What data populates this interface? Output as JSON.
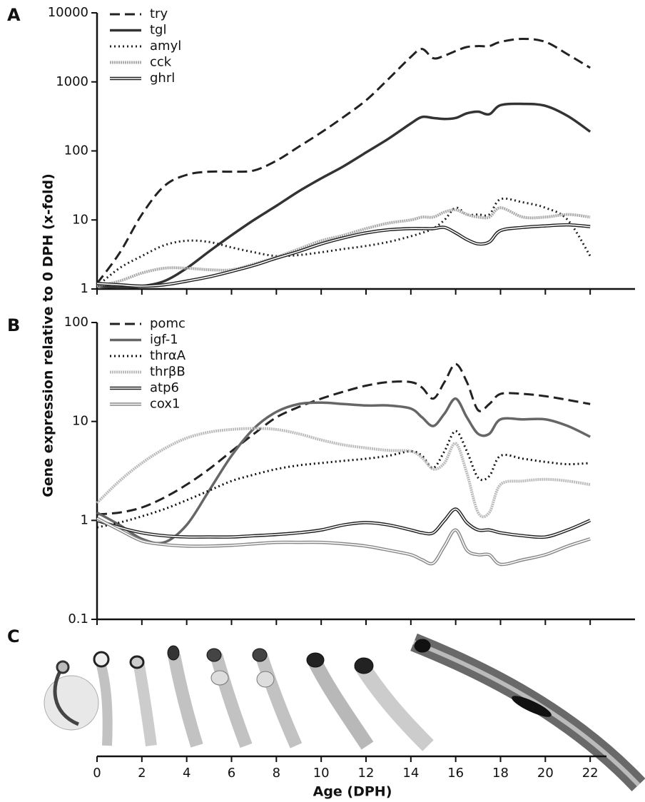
{
  "panel_labels": [
    "A",
    "B",
    "C"
  ],
  "y_axis_label": "Gene expression relative to 0 DPH (x-fold)",
  "age_axis": {
    "label": "Age (DPH)",
    "xticks": [
      0,
      2,
      4,
      6,
      8,
      10,
      12,
      14,
      16,
      18,
      20,
      22
    ]
  },
  "chart_data": [
    {
      "type": "line",
      "log_y": true,
      "legend": "top-left",
      "xlim": [
        0,
        24
      ],
      "ylim": [
        1,
        10000
      ],
      "yticks": [
        1,
        10,
        100,
        1000,
        10000
      ],
      "x": [
        0,
        1,
        2,
        3,
        4,
        5,
        6,
        7,
        8,
        9,
        10,
        11,
        12,
        13,
        14,
        14.5,
        15,
        15.5,
        16,
        16.5,
        17,
        17.5,
        18,
        19,
        20,
        21,
        22
      ],
      "series": [
        {
          "name": "try",
          "color": "#222222",
          "style": "dashed",
          "values": [
            1.2,
            3.3,
            12,
            31,
            45,
            50,
            50,
            52,
            72,
            115,
            185,
            310,
            540,
            1100,
            2300,
            3000,
            2200,
            2400,
            2800,
            3200,
            3300,
            3300,
            3800,
            4200,
            3800,
            2500,
            1600
          ]
        },
        {
          "name": "tgl",
          "color": "#333333",
          "style": "solid",
          "values": [
            1.1,
            1.05,
            1.1,
            1.3,
            2,
            3.5,
            6,
            10,
            16,
            26,
            40,
            60,
            95,
            150,
            250,
            310,
            300,
            290,
            300,
            350,
            370,
            340,
            460,
            480,
            450,
            320,
            190
          ]
        },
        {
          "name": "amyl",
          "color": "#222222",
          "style": "dotted",
          "values": [
            1.1,
            2,
            3,
            4.3,
            5,
            4.8,
            4,
            3.4,
            3,
            3.1,
            3.4,
            3.8,
            4.2,
            4.8,
            5.8,
            6.5,
            7.5,
            10,
            15,
            12,
            12,
            12,
            20,
            18,
            15,
            10,
            3
          ]
        },
        {
          "name": "cck",
          "color": "#aaaaaa",
          "style": "hatched",
          "values": [
            1.1,
            1.3,
            1.7,
            2,
            2,
            1.9,
            1.9,
            2.3,
            2.9,
            3.8,
            5,
            6,
            7.5,
            9,
            10,
            11,
            11,
            13,
            14,
            12,
            11,
            11,
            15,
            11,
            11,
            12,
            11
          ]
        },
        {
          "name": "ghrl",
          "color": "#222222",
          "style": "double",
          "values": [
            1.2,
            1.15,
            1.1,
            1.15,
            1.3,
            1.5,
            1.8,
            2.2,
            2.8,
            3.5,
            4.5,
            5.5,
            6.5,
            7.2,
            7.5,
            7.5,
            7.5,
            7.8,
            6.5,
            5.2,
            4.5,
            4.8,
            7,
            7.8,
            8.2,
            8.5,
            8
          ]
        }
      ]
    },
    {
      "type": "line",
      "log_y": true,
      "legend": "top-left",
      "xlim": [
        0,
        24
      ],
      "ylim": [
        0.1,
        100
      ],
      "yticks": [
        0.1,
        1,
        10,
        100
      ],
      "x": [
        0,
        1,
        2,
        3,
        4,
        5,
        6,
        7,
        8,
        9,
        10,
        11,
        12,
        13,
        14,
        14.5,
        15,
        15.5,
        16,
        16.5,
        17,
        17.5,
        18,
        19,
        20,
        21,
        22
      ],
      "series": [
        {
          "name": "pomc",
          "color": "#222222",
          "style": "dashed",
          "values": [
            1.15,
            1.2,
            1.35,
            1.7,
            2.3,
            3.3,
            5,
            7.5,
            11,
            14,
            17,
            20,
            23,
            25,
            25,
            22,
            17,
            25,
            38,
            25,
            13,
            15,
            19,
            19,
            18,
            16.5,
            15
          ]
        },
        {
          "name": "igf-1",
          "color": "#666666",
          "style": "solid",
          "values": [
            1.2,
            0.9,
            0.65,
            0.6,
            0.9,
            2,
            4.5,
            8.5,
            12.5,
            15,
            15.5,
            15,
            14.5,
            14.5,
            13.5,
            11,
            9,
            12,
            17,
            11,
            7.5,
            7.5,
            10.5,
            10.5,
            10.5,
            9,
            7
          ]
        },
        {
          "name": "thrαA",
          "color": "#111111",
          "style": "dotted",
          "values": [
            0.85,
            0.95,
            1.1,
            1.3,
            1.6,
            2,
            2.5,
            2.9,
            3.3,
            3.6,
            3.8,
            4,
            4.2,
            4.5,
            5,
            4.5,
            3.4,
            5,
            8,
            5,
            2.7,
            2.8,
            4.5,
            4.2,
            3.9,
            3.7,
            3.8
          ]
        },
        {
          "name": "thrβB",
          "color": "#bbbbbb",
          "style": "hatched",
          "values": [
            1.5,
            2.5,
            3.8,
            5.3,
            6.8,
            7.8,
            8.3,
            8.5,
            8.3,
            7.5,
            6.5,
            5.8,
            5.4,
            5.1,
            5,
            4.3,
            3.3,
            3.8,
            6,
            3,
            1.2,
            1.2,
            2.3,
            2.5,
            2.6,
            2.5,
            2.3
          ]
        },
        {
          "name": "atp6",
          "color": "#222222",
          "style": "double",
          "values": [
            1.0,
            0.85,
            0.75,
            0.7,
            0.68,
            0.68,
            0.68,
            0.7,
            0.72,
            0.75,
            0.8,
            0.9,
            0.95,
            0.9,
            0.8,
            0.75,
            0.75,
            1,
            1.3,
            0.95,
            0.8,
            0.8,
            0.75,
            0.7,
            0.68,
            0.8,
            1.0
          ]
        },
        {
          "name": "cox1",
          "color": "#888888",
          "style": "double",
          "values": [
            1.05,
            0.8,
            0.62,
            0.57,
            0.55,
            0.55,
            0.56,
            0.58,
            0.6,
            0.6,
            0.6,
            0.58,
            0.55,
            0.5,
            0.45,
            0.4,
            0.37,
            0.55,
            0.8,
            0.5,
            0.45,
            0.45,
            0.36,
            0.4,
            0.45,
            0.55,
            0.65
          ]
        }
      ]
    }
  ]
}
